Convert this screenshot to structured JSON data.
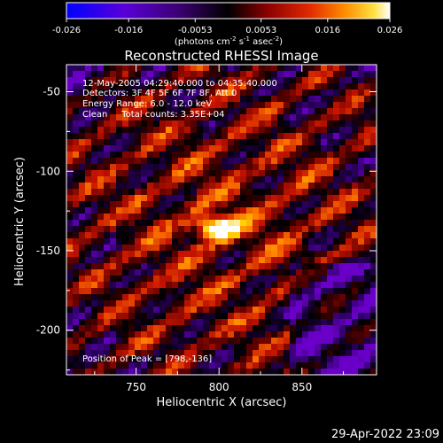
{
  "colorbar": {
    "ticks": [
      "-0.026",
      "-0.016",
      "-0.0053",
      "0.0053",
      "0.016",
      "0.026"
    ],
    "tick_values": [
      -0.026,
      -0.016,
      -0.0053,
      0.0053,
      0.016,
      0.026
    ],
    "range": [
      -0.026,
      0.026
    ],
    "unit_main": "(photons cm",
    "unit_sup1": "-2",
    "unit_mid": " s",
    "unit_sup2": "-1",
    "unit_end": " asec",
    "unit_sup3": "-2",
    "unit_close": ")"
  },
  "chart_data": {
    "type": "heatmap",
    "title": "Reconstructed RHESSI Image",
    "xlabel": "Heliocentric X (arcsec)",
    "ylabel": "Heliocentric Y (arcsec)",
    "xlim": [
      708,
      895
    ],
    "ylim": [
      -228,
      -33
    ],
    "xticks": [
      750,
      800,
      850
    ],
    "yticks": [
      -50,
      -100,
      -150,
      -200
    ],
    "peak": {
      "x": 798,
      "y": -136
    },
    "colormap": [
      "#0000ff",
      "#6a00c8",
      "#2a0060",
      "#000000",
      "#5a0000",
      "#c81400",
      "#ff7800",
      "#ffd200",
      "#ffffff"
    ],
    "annotations": [
      "12-May-2005 04:29:40.000 to 04:35:40.000",
      "Detectors: 3F 4F 5F 6F 7F 8F, Att 0",
      "Energy Range: 6.0 - 12.0 keV",
      "Clean     Total counts: 3.35E+04"
    ],
    "peak_label": "Position of Peak = [798,-136]"
  },
  "footer": {
    "timestamp": "29-Apr-2022 23:09"
  }
}
